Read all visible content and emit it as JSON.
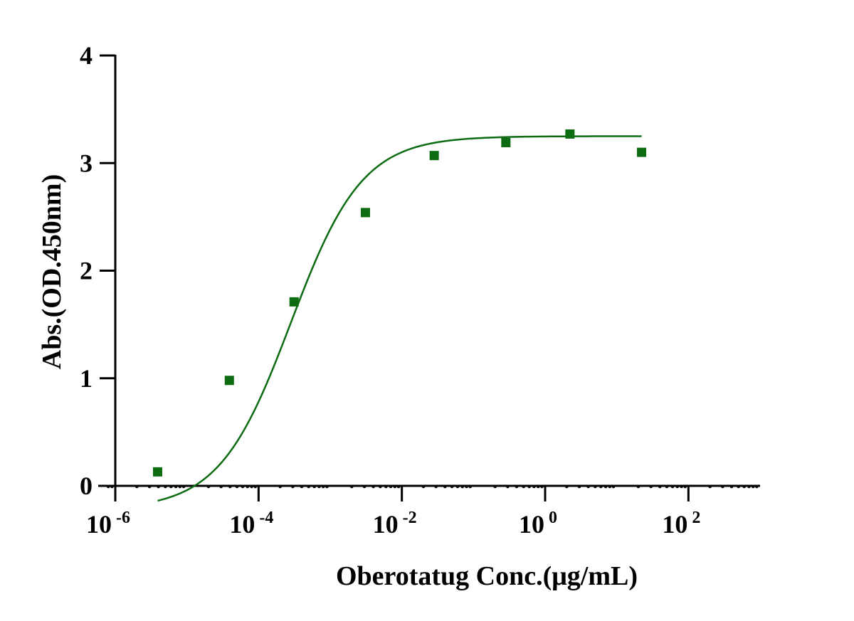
{
  "chart_data": {
    "type": "scatter",
    "xlabel": "Oberotatug Conc.(μg/mL)",
    "ylabel": "Abs.(OD.450nm)",
    "x_scale": "log10",
    "xlim": [
      1e-06,
      1000
    ],
    "ylim": [
      0,
      4
    ],
    "x_ticks": [
      {
        "value": 1e-06,
        "base": "10",
        "exp": "-6"
      },
      {
        "value": 0.0001,
        "base": "10",
        "exp": "-4"
      },
      {
        "value": 0.01,
        "base": "10",
        "exp": "-2"
      },
      {
        "value": 1,
        "base": "10",
        "exp": "0"
      },
      {
        "value": 100,
        "base": "10",
        "exp": "2"
      }
    ],
    "y_ticks": [
      {
        "value": 0,
        "label": "0"
      },
      {
        "value": 1,
        "label": "1"
      },
      {
        "value": 2,
        "label": "2"
      },
      {
        "value": 3,
        "label": "3"
      },
      {
        "value": 4,
        "label": "4"
      }
    ],
    "series": [
      {
        "color": "#0d6b12",
        "marker": "square",
        "x": [
          3.9e-06,
          3.91e-05,
          0.000313,
          0.0031,
          0.0283,
          0.283,
          2.22,
          22.2
        ],
        "y": [
          0.13,
          0.98,
          1.71,
          2.54,
          3.07,
          3.19,
          3.27,
          3.1
        ],
        "fit": {
          "model": "4PL",
          "bottom": -0.22,
          "top": 3.25,
          "logEC50": -3.55,
          "hill": 0.87,
          "x_range": [
            3.9e-06,
            22.2
          ]
        }
      }
    ],
    "grid": false,
    "legend": "none"
  }
}
